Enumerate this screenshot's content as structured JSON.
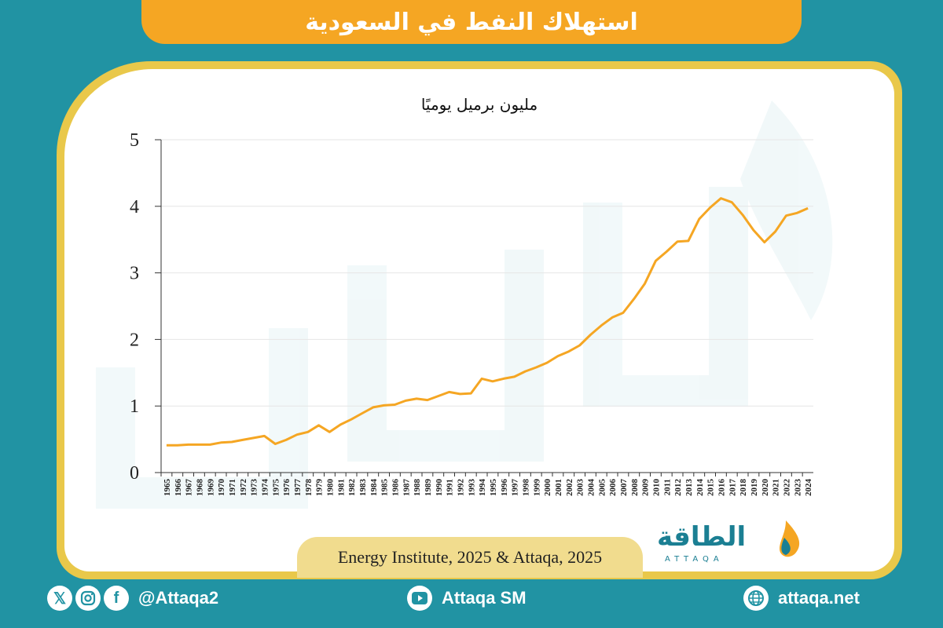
{
  "header": {
    "title": "استهلاك النفط في السعودية"
  },
  "chart_data": {
    "type": "line",
    "unit_label": "مليون برميل يوميًا",
    "ylim": [
      0,
      5
    ],
    "yticks": [
      "0",
      "1",
      "2",
      "3",
      "4",
      "5"
    ],
    "x": [
      "1965",
      "1966",
      "1967",
      "1968",
      "1969",
      "1970",
      "1971",
      "1972",
      "1973",
      "1974",
      "1975",
      "1976",
      "1977",
      "1978",
      "1979",
      "1980",
      "1981",
      "1982",
      "1983",
      "1984",
      "1985",
      "1986",
      "1987",
      "1988",
      "1989",
      "1990",
      "1991",
      "1992",
      "1993",
      "1994",
      "1995",
      "1996",
      "1997",
      "1998",
      "1999",
      "2000",
      "2001",
      "2002",
      "2003",
      "2004",
      "2005",
      "2006",
      "2007",
      "2008",
      "2009",
      "2010",
      "2011",
      "2012",
      "2013",
      "2014",
      "2015",
      "2016",
      "2017",
      "2018",
      "2019",
      "2020",
      "2021",
      "2022",
      "2023",
      "2024"
    ],
    "values": [
      0.41,
      0.41,
      0.42,
      0.42,
      0.42,
      0.45,
      0.46,
      0.49,
      0.52,
      0.55,
      0.43,
      0.49,
      0.57,
      0.61,
      0.71,
      0.61,
      0.72,
      0.8,
      0.89,
      0.98,
      1.01,
      1.02,
      1.08,
      1.11,
      1.09,
      1.15,
      1.21,
      1.18,
      1.19,
      1.41,
      1.37,
      1.41,
      1.44,
      1.52,
      1.58,
      1.65,
      1.75,
      1.82,
      1.91,
      2.07,
      2.21,
      2.33,
      2.4,
      2.61,
      2.84,
      3.18,
      3.32,
      3.47,
      3.48,
      3.81,
      3.98,
      4.12,
      4.06,
      3.87,
      3.64,
      3.46,
      3.62,
      3.86,
      3.9,
      3.97
    ],
    "line_color": "#f5a623",
    "grid": true
  },
  "source": "Energy Institute, 2025 & Attaqa, 2025",
  "logo": {
    "arabic": "الطاقة",
    "latin": "ATTAQA"
  },
  "footer": {
    "social_handle": "@Attaqa2",
    "youtube": "Attaqa SM",
    "website": "attaqa.net"
  },
  "icons": [
    "x-icon",
    "instagram-icon",
    "facebook-icon",
    "youtube-icon",
    "globe-icon"
  ]
}
